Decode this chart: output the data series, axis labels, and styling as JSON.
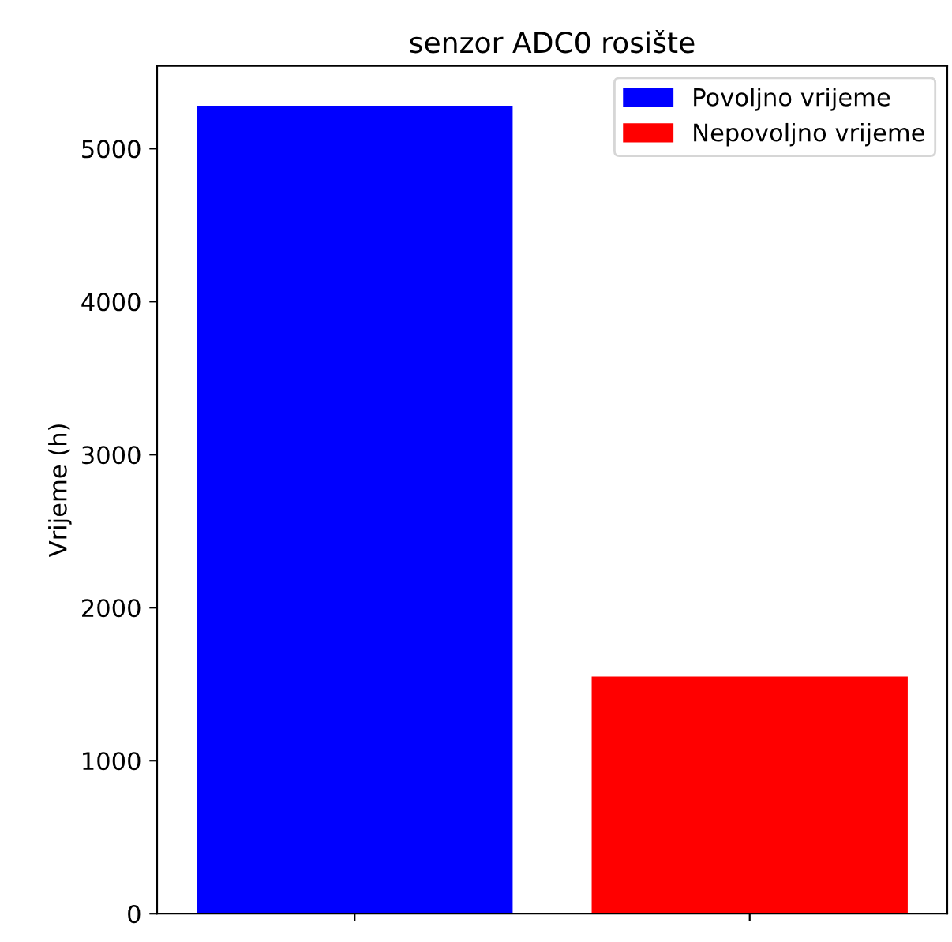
{
  "chart_data": {
    "type": "bar",
    "title": "senzor ADC0 rosište",
    "ylabel": "Vrijeme (h)",
    "categories": [
      null,
      null
    ],
    "series": [
      {
        "name": "Povoljno vrijeme",
        "color": "#0000ff",
        "values": [
          5280,
          null
        ]
      },
      {
        "name": "Nepovoljno vrijeme",
        "color": "#ff0000",
        "values": [
          null,
          1550
        ]
      }
    ],
    "ylim": [
      0,
      5540
    ],
    "yticks": [
      0,
      1000,
      2000,
      3000,
      4000,
      5000
    ],
    "grid": false,
    "legend": "top right",
    "tick_labels": "y"
  }
}
